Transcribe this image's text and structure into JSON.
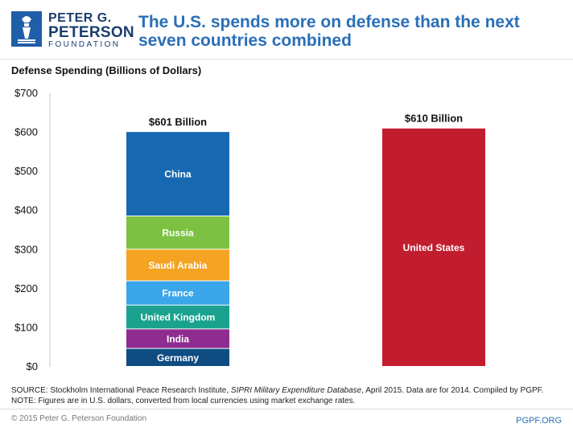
{
  "logo": {
    "line1": "PETER G.",
    "line2": "PETERSON",
    "line3": "FOUNDATION",
    "icon": "torch-icon"
  },
  "title": "The U.S. spends more on defense than the next seven countries combined",
  "colors": {
    "title": "#2a6fb7",
    "us": "#c21d2f",
    "logo": "#1f5ea8"
  },
  "chart_data": {
    "type": "bar",
    "stacked": true,
    "ylabel": "Defense Spending (Billions of Dollars)",
    "ylim": [
      0,
      700
    ],
    "yticks": [
      0,
      100,
      200,
      300,
      400,
      500,
      600,
      700
    ],
    "ytick_labels": [
      "$0",
      "$100",
      "$200",
      "$300",
      "$400",
      "$500",
      "$600",
      "$700"
    ],
    "grid": false,
    "bars": [
      {
        "total_label": "$601 Billion",
        "segments": [
          {
            "label": "Germany",
            "value": 46,
            "color": "#0f4c81"
          },
          {
            "label": "India",
            "value": 50,
            "color": "#8e2c90"
          },
          {
            "label": "United Kingdom",
            "value": 61,
            "color": "#1aa28e"
          },
          {
            "label": "France",
            "value": 62,
            "color": "#3ba6e9"
          },
          {
            "label": "Saudi Arabia",
            "value": 81,
            "color": "#f4a323"
          },
          {
            "label": "Russia",
            "value": 85,
            "color": "#7dc142"
          },
          {
            "label": "China",
            "value": 216,
            "color": "#1868b1"
          }
        ]
      },
      {
        "total_label": "$610 Billion",
        "segments": [
          {
            "label": "United States",
            "value": 610,
            "color": "#c21d2f"
          }
        ]
      }
    ]
  },
  "footnotes": {
    "source_prefix": "SOURCE: Stockholm International Peace Research Institute, ",
    "source_italic": "SIPRI Military Expenditure Database",
    "source_suffix": ", April 2015. Data are for 2014. Compiled by PGPF.",
    "note": "NOTE: Figures are in U.S. dollars, converted from local currencies using market exchange rates."
  },
  "footer": {
    "copyright": "© 2015 Peter G. Peterson Foundation",
    "link": "PGPF.ORG"
  }
}
